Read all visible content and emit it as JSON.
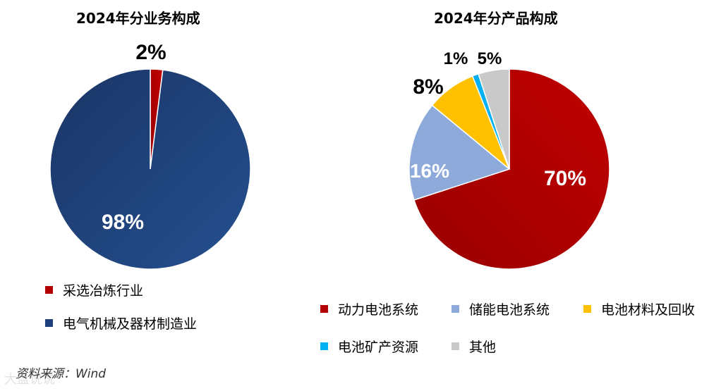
{
  "chart_data": [
    {
      "type": "pie",
      "title": "2024年分业务构成",
      "categories": [
        "采选冶炼行业",
        "电气机械及器材制造业"
      ],
      "values": [
        2,
        98
      ],
      "labels": [
        "2%",
        "98%"
      ],
      "colors": [
        "#b20000",
        "#1f3f7a"
      ],
      "legend_position": "bottom"
    },
    {
      "type": "pie",
      "title": "2024年分产品构成",
      "categories": [
        "动力电池系统",
        "储能电池系统",
        "电池材料及回收",
        "电池矿产资源",
        "其他"
      ],
      "values": [
        70,
        16,
        8,
        1,
        5
      ],
      "labels": [
        "70%",
        "16%",
        "8%",
        "1%",
        "5%"
      ],
      "colors": [
        "#b30000",
        "#8eaadb",
        "#ffc000",
        "#00b0f0",
        "#c9c9c9"
      ],
      "legend_position": "bottom"
    }
  ],
  "source": "资料来源：Wind",
  "watermark": "大盘说说"
}
